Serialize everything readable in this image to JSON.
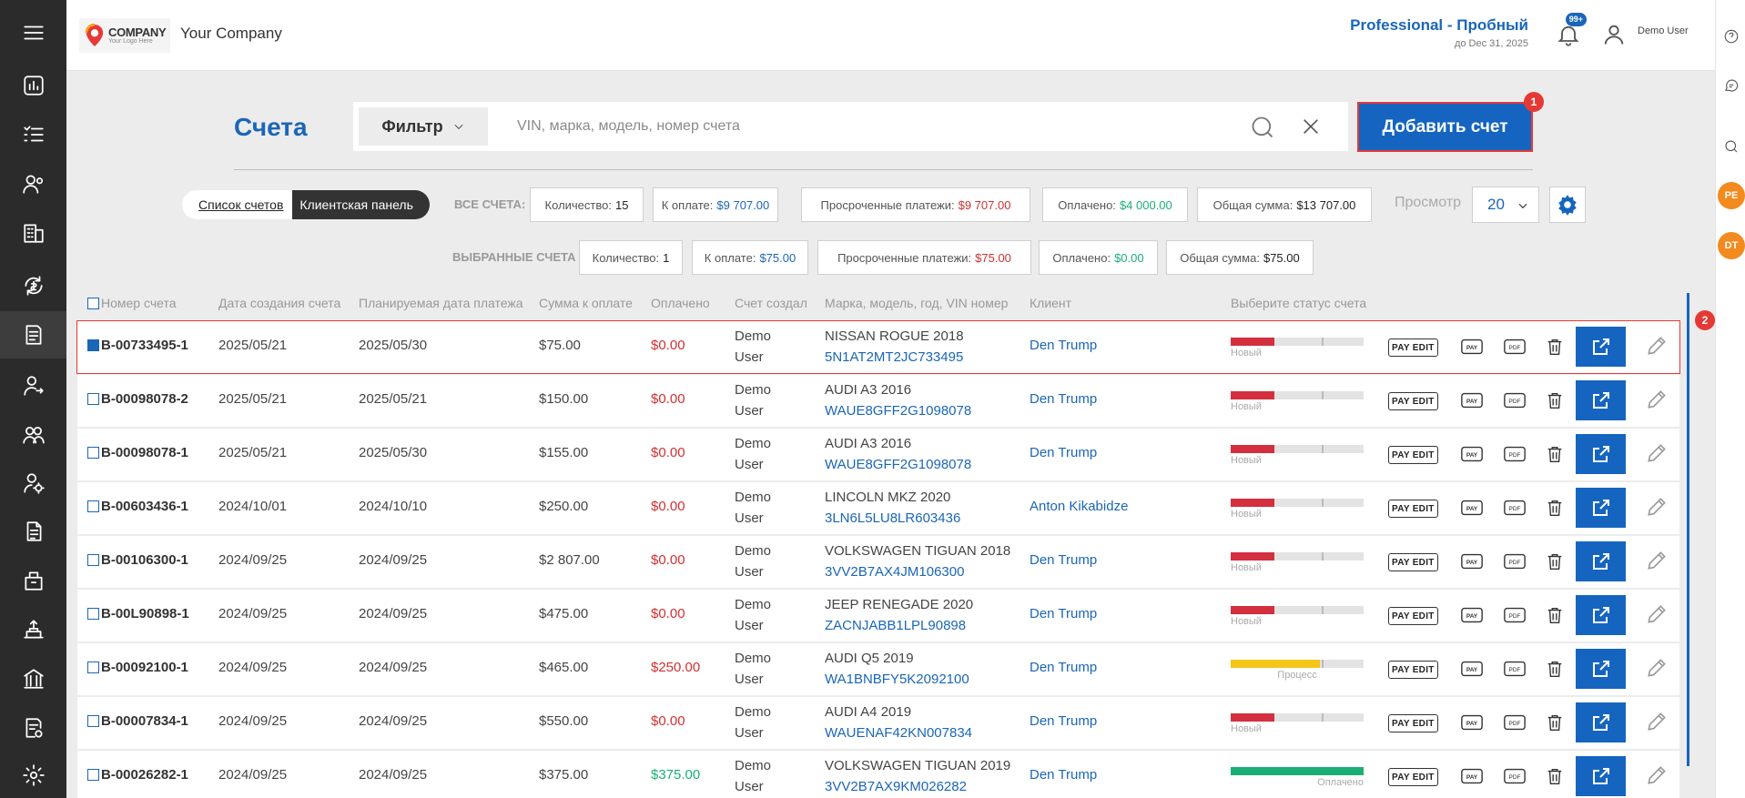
{
  "header": {
    "logo_title": "COMPANY",
    "logo_subtitle": "Your Logo Here",
    "company_name": "Your Company",
    "plan_title": "Professional - Пробный",
    "plan_subtitle": "до Dec 31, 2025",
    "notification_badge": "99+",
    "user_name": "Demo User"
  },
  "right_rail": {
    "avatars": [
      "PE",
      "DT"
    ]
  },
  "page": {
    "title": "Счета",
    "filter_label": "Фильтр",
    "search_placeholder": "VIN, марка, модель, номер счета",
    "add_button_label": "Добавить счет",
    "add_button_badge": "1",
    "selected_row_badge": "2"
  },
  "toggle": {
    "list_label": "Список счетов",
    "client_panel_label": "Клиентская панель"
  },
  "all_invoices": {
    "label": "ВСЕ СЧЕТА:",
    "count_label": "Количество:",
    "count_value": "15",
    "due_label": "К оплате:",
    "due_value": "$9 707.00",
    "overdue_label": "Просроченные платежи:",
    "overdue_value": "$9 707.00",
    "paid_label": "Оплачено:",
    "paid_value": "$4 000.00",
    "total_label": "Общая сумма:",
    "total_value": "$13 707.00"
  },
  "selected_invoices": {
    "label": "ВЫБРАННЫЕ СЧЕТА",
    "count_label": "Количество:",
    "count_value": "1",
    "due_label": "К оплате:",
    "due_value": "$75.00",
    "overdue_label": "Просроченные платежи:",
    "overdue_value": "$75.00",
    "paid_label": "Оплачено:",
    "paid_value": "$0.00",
    "total_label": "Общая сумма:",
    "total_value": "$75.00"
  },
  "view": {
    "label": "Просмотр",
    "page_size": "20"
  },
  "table": {
    "columns": {
      "number": "Номер счета",
      "created": "Дата создания счета",
      "planned": "Планируемая дата платежа",
      "due": "Сумма к оплате",
      "paid": "Оплачено",
      "creator": "Счет создал",
      "vehicle": "Марка, модель, год, VIN номер",
      "client": "Клиент",
      "status": "Выберите статус счета"
    },
    "actions": {
      "pay_edit": "PAY EDIT",
      "pay": "PAY",
      "pdf": "PDF"
    },
    "rows": [
      {
        "number": "B-00733495-1",
        "created": "2025/05/21",
        "planned": "2025/05/30",
        "due": "$75.00",
        "paid": "$0.00",
        "paid_state": "red",
        "creator_1": "Demo",
        "creator_2": "User",
        "vehicle": "NISSAN ROGUE 2018",
        "vin": "5N1AT2MT2JC733495",
        "client": "Den Trump",
        "status_text": "Новый",
        "status_progress": 0.33,
        "status_color": "#d32f3f",
        "selected": true
      },
      {
        "number": "B-00098078-2",
        "created": "2025/05/21",
        "planned": "2025/05/21",
        "due": "$150.00",
        "paid": "$0.00",
        "paid_state": "red",
        "creator_1": "Demo",
        "creator_2": "User",
        "vehicle": "AUDI A3 2016",
        "vin": "WAUE8GFF2G1098078",
        "client": "Den Trump",
        "status_text": "Новый",
        "status_progress": 0.33,
        "status_color": "#d32f3f",
        "selected": false
      },
      {
        "number": "B-00098078-1",
        "created": "2025/05/21",
        "planned": "2025/05/30",
        "due": "$155.00",
        "paid": "$0.00",
        "paid_state": "red",
        "creator_1": "Demo",
        "creator_2": "User",
        "vehicle": "AUDI A3 2016",
        "vin": "WAUE8GFF2G1098078",
        "client": "Den Trump",
        "status_text": "Новый",
        "status_progress": 0.33,
        "status_color": "#d32f3f",
        "selected": false
      },
      {
        "number": "B-00603436-1",
        "created": "2024/10/01",
        "planned": "2024/10/10",
        "due": "$250.00",
        "paid": "$0.00",
        "paid_state": "red",
        "creator_1": "Demo",
        "creator_2": "User",
        "vehicle": "LINCOLN MKZ 2020",
        "vin": "3LN6L5LU8LR603436",
        "client": "Anton Kikabidze",
        "status_text": "Новый",
        "status_progress": 0.33,
        "status_color": "#d32f3f",
        "selected": false
      },
      {
        "number": "B-00106300-1",
        "created": "2024/09/25",
        "planned": "2024/09/25",
        "due": "$2 807.00",
        "paid": "$0.00",
        "paid_state": "red",
        "creator_1": "Demo",
        "creator_2": "User",
        "vehicle": "VOLKSWAGEN TIGUAN 2018",
        "vin": "3VV2B7AX4JM106300",
        "client": "Den Trump",
        "status_text": "Новый",
        "status_progress": 0.33,
        "status_color": "#d32f3f",
        "selected": false
      },
      {
        "number": "B-00L90898-1",
        "created": "2024/09/25",
        "planned": "2024/09/25",
        "due": "$475.00",
        "paid": "$0.00",
        "paid_state": "red",
        "creator_1": "Demo",
        "creator_2": "User",
        "vehicle": "JEEP RENEGADE 2020",
        "vin": "ZACNJABB1LPL90898",
        "client": "Den Trump",
        "status_text": "Новый",
        "status_progress": 0.33,
        "status_color": "#d32f3f",
        "selected": false
      },
      {
        "number": "B-00092100-1",
        "created": "2024/09/25",
        "planned": "2024/09/25",
        "due": "$465.00",
        "paid": "$250.00",
        "paid_state": "red",
        "creator_1": "Demo",
        "creator_2": "User",
        "vehicle": "AUDI Q5 2019",
        "vin": "WA1BNBFY5K2092100",
        "client": "Den Trump",
        "status_text": "Процесс",
        "status_progress": 0.67,
        "status_color": "#f5c518",
        "selected": false
      },
      {
        "number": "B-00007834-1",
        "created": "2024/09/25",
        "planned": "2024/09/25",
        "due": "$550.00",
        "paid": "$0.00",
        "paid_state": "red",
        "creator_1": "Demo",
        "creator_2": "User",
        "vehicle": "AUDI A4 2019",
        "vin": "WAUENAF42KN007834",
        "client": "Den Trump",
        "status_text": "Новый",
        "status_progress": 0.33,
        "status_color": "#d32f3f",
        "selected": false
      },
      {
        "number": "B-00026282-1",
        "created": "2024/09/25",
        "planned": "2024/09/25",
        "due": "$375.00",
        "paid": "$375.00",
        "paid_state": "green",
        "creator_1": "Demo",
        "creator_2": "User",
        "vehicle": "VOLKSWAGEN TIGUAN 2019",
        "vin": "3VV2B7AX9KM026282",
        "client": "Den Trump",
        "status_text": "Оплачено",
        "status_progress": 1.0,
        "status_color": "#1aaf74",
        "selected": false
      }
    ]
  },
  "colors": {
    "accent": "#1565c0",
    "danger": "#d32f2f",
    "success": "#1aaf74",
    "sidebar": "#2b2b2b"
  }
}
